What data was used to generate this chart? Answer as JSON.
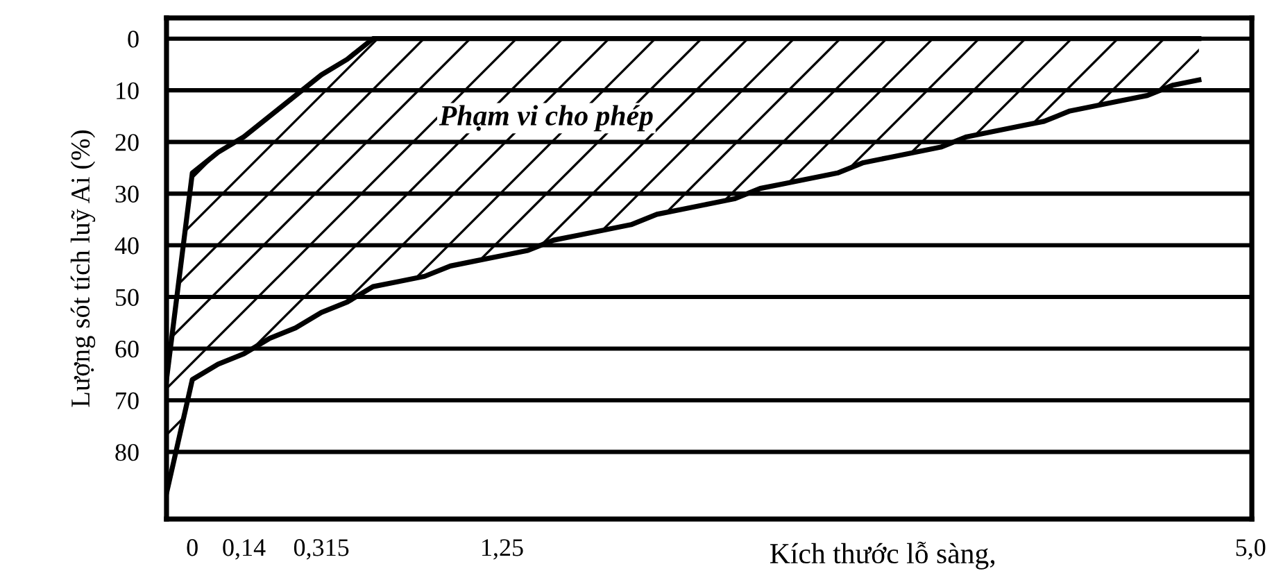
{
  "chart_data": {
    "type": "line",
    "ylabel": "Lượng sót tích luỹ Ai (%)",
    "xlabel": "Kích thước lỗ sàng,",
    "categories": [
      null,
      "0",
      null,
      "0,14",
      null,
      null,
      "0,315",
      null,
      null,
      null,
      null,
      null,
      null,
      "1,25",
      null,
      null,
      null,
      null,
      null,
      null,
      null,
      null,
      null,
      null,
      null,
      null,
      null,
      null,
      null,
      null,
      null,
      null,
      null,
      null,
      null,
      null,
      null,
      null,
      null,
      null,
      null,
      null,
      "5,0"
    ],
    "series": [
      {
        "color": "#000000",
        "values": [
          66,
          26,
          22,
          19,
          15,
          11,
          7,
          4,
          0,
          0,
          0,
          0,
          0,
          0,
          0,
          0,
          0,
          0,
          0,
          0,
          0,
          0,
          0,
          0,
          0,
          0,
          0,
          0,
          0,
          0,
          0,
          0,
          0,
          0,
          0,
          0,
          0,
          0,
          0,
          0,
          0,
          null,
          null
        ]
      },
      {
        "color": "#000000",
        "values": [
          88,
          66,
          63,
          61,
          58,
          56,
          53,
          51,
          48,
          47,
          46,
          44,
          43,
          42,
          41,
          39,
          38,
          37,
          36,
          34,
          33,
          32,
          31,
          29,
          28,
          27,
          26,
          24,
          23,
          22,
          21,
          19,
          18,
          17,
          16,
          14,
          13,
          12,
          11,
          9,
          8,
          null,
          null
        ],
        "lower": [
          66,
          26,
          22,
          19,
          15,
          11,
          7,
          4,
          0,
          0,
          0,
          0,
          0,
          0,
          0,
          0,
          0,
          0,
          0,
          0,
          0,
          0,
          0,
          0,
          0,
          0,
          0,
          0,
          0,
          0,
          0,
          0,
          0,
          0,
          0,
          0,
          0,
          0,
          0,
          0,
          0,
          null,
          null
        ],
        "upper": [
          88,
          66,
          63,
          61,
          58,
          56,
          53,
          51,
          48,
          47,
          46,
          44,
          43,
          42,
          41,
          39,
          38,
          37,
          36,
          34,
          33,
          32,
          31,
          29,
          28,
          27,
          26,
          24,
          23,
          22,
          21,
          19,
          18,
          17,
          16,
          14,
          13,
          12,
          11,
          9,
          8,
          null,
          null
        ]
      }
    ],
    "ylim": [
      93,
      -4
    ],
    "yticks": [
      0,
      10,
      20,
      30,
      40,
      50,
      60,
      70,
      80
    ],
    "annotations": [
      "Phạm vi cho phép"
    ],
    "grid": "y",
    "line_style": "solid",
    "marker": "none"
  }
}
